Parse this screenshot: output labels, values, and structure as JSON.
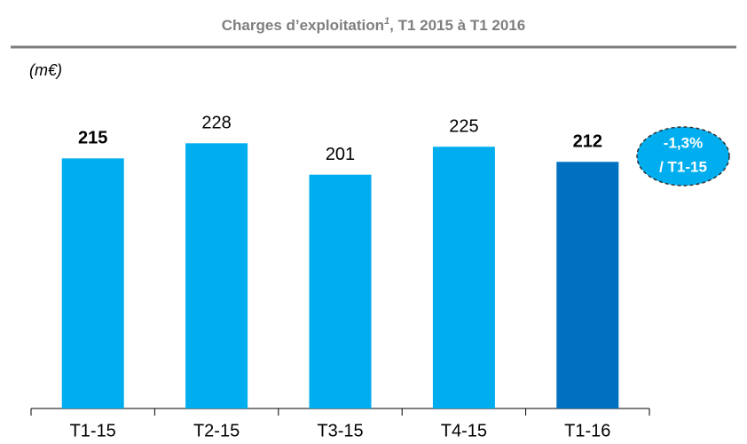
{
  "chart_data": {
    "type": "bar",
    "title": {
      "text": "Charges d’exploitation",
      "note": "1",
      "suffix": ", T1 2015 à T1 2016"
    },
    "unit": "(m€)",
    "categories": [
      "T1-15",
      "T2-15",
      "T3-15",
      "T4-15",
      "T1-16"
    ],
    "values": [
      215,
      228,
      201,
      225,
      212
    ],
    "colors": [
      "#00aeef",
      "#00aeef",
      "#00aeef",
      "#00aeef",
      "#0070c0"
    ],
    "bold_labels": [
      true,
      false,
      false,
      false,
      true
    ],
    "annotation": {
      "lines": [
        "-1,3%",
        "/ T1-15"
      ],
      "color": "#00aeef"
    }
  }
}
